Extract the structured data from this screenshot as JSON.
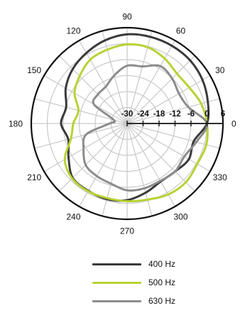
{
  "chart_data": {
    "type": "polar-line",
    "theta_ticks": [
      "0",
      "30",
      "60",
      "90",
      "120",
      "150",
      "180",
      "210",
      "240",
      "270",
      "300",
      "330"
    ],
    "r_ticks": [
      "-30",
      "-24",
      "-18",
      "-12",
      "-6",
      "0",
      "6"
    ],
    "r_range": [
      -30,
      6
    ],
    "grid": true,
    "legend_position": "bottom",
    "angles": [
      0,
      15,
      30,
      45,
      60,
      75,
      90,
      105,
      120,
      135,
      150,
      165,
      180,
      195,
      210,
      225,
      240,
      255,
      270,
      285,
      300,
      315,
      330,
      345
    ],
    "series": [
      {
        "name": "400 Hz",
        "color": "#3a3a3a",
        "values": [
          0,
          1.4,
          2.7,
          3.5,
          3.7,
          3.7,
          3.5,
          2.3,
          0.6,
          -1.1,
          -3.4,
          -6.3,
          -5.2,
          -7.1,
          -4.6,
          -1.1,
          -0.8,
          -0.6,
          -1.2,
          -3.1,
          -4.8,
          -4.5,
          -3.2,
          -4.1
        ]
      },
      {
        "name": "500 Hz",
        "color": "#b6d334",
        "values": [
          0,
          -1.2,
          -3.0,
          -3.5,
          -1.8,
          -0.3,
          -0.3,
          -1.3,
          -2.3,
          -4.8,
          -7.2,
          -11.1,
          -9.8,
          -8.2,
          -3.0,
          -0.8,
          -0.6,
          -1.0,
          -0.8,
          -0.4,
          0.8,
          1.2,
          0.4,
          0.8
        ]
      },
      {
        "name": "630 Hz",
        "color": "#8c8c8c",
        "values": [
          0,
          -6.2,
          -7.5,
          -6.1,
          -5.1,
          -7.8,
          -8.3,
          -11.3,
          -14.0,
          -14.5,
          -15.6,
          -24.8,
          -23.4,
          -14.1,
          -11.1,
          -8.0,
          -7.2,
          -6.6,
          -4.9,
          -4.8,
          -5.1,
          -4.5,
          -5.2,
          -3.1
        ]
      }
    ]
  }
}
